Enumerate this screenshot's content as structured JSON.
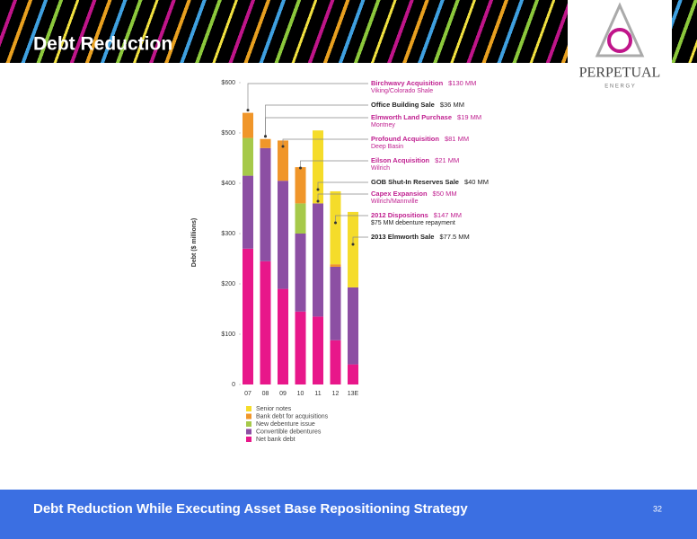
{
  "slide": {
    "title": "Debt Reduction",
    "footer": "Debt Reduction While Executing Asset Base Repositioning Strategy",
    "page_number": "32",
    "logo": {
      "name": "PERPETUAL",
      "sub": "E N E R G Y"
    }
  },
  "chart_data": {
    "type": "stacked_bar",
    "y_label": "Debt ($ millions)",
    "categories": [
      "07",
      "08",
      "09",
      "10",
      "11",
      "12",
      "13E"
    ],
    "series": [
      {
        "name": "Net bank debt",
        "color": "#e8178a",
        "values": [
          270,
          245,
          190,
          145,
          135,
          88,
          40
        ]
      },
      {
        "name": "Convertible debentures",
        "color": "#8c4fa3",
        "values": [
          145,
          225,
          215,
          155,
          225,
          146,
          153
        ]
      },
      {
        "name": "New debenture issue",
        "color": "#a6c94a",
        "values": [
          75,
          null,
          null,
          60,
          null,
          null,
          null
        ]
      },
      {
        "name": "Bank debt for acquisitions",
        "color": "#f0962a",
        "values": [
          50,
          18,
          80,
          72,
          null,
          5,
          null
        ]
      },
      {
        "name": "Senior notes",
        "color": "#f5dc2a",
        "values": [
          null,
          null,
          null,
          null,
          145,
          145,
          150
        ]
      }
    ],
    "ylim": [
      0,
      600
    ],
    "yticks": [
      0,
      {
        "value": 100,
        "label": "$100"
      },
      {
        "value": 200,
        "label": "$200"
      },
      {
        "value": 300,
        "label": "$300"
      },
      {
        "value": 400,
        "label": "$400"
      },
      {
        "value": 500,
        "label": "$500"
      },
      {
        "value": 600,
        "label": "$600"
      }
    ],
    "annotations": [
      {
        "title": "Birchwavy Acquisition",
        "amount": "$130 MM",
        "note": "Viking/Colorado Shale"
      },
      {
        "title": "Office Building Sale",
        "amount": "$36 MM"
      },
      {
        "title": "Elmworth Land Purchase",
        "amount": "$19 MM",
        "note": "Montney"
      },
      {
        "title": "Profound Acquisition",
        "amount": "$81 MM",
        "note": "Deep Basin"
      },
      {
        "title": "Eilson Acquisition",
        "amount": "$21 MM",
        "note": "Wilrich"
      },
      {
        "title": "GOB Shut-In Reserves Sale",
        "amount": "$40 MM"
      },
      {
        "title": "Capex Expansion",
        "amount": "$50 MM",
        "note": "Wilrich/Mannville"
      },
      {
        "title": "2012 Dispositions",
        "amount": "$147 MM",
        "note": "$75 MM debenture repayment"
      },
      {
        "title": "2013 Elmworth Sale",
        "amount": "$77.5 MM"
      }
    ]
  }
}
